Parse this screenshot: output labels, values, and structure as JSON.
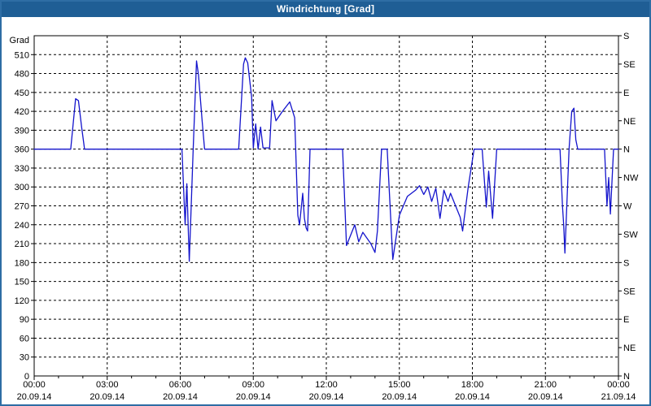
{
  "window": {
    "title": "Windrichtung [Grad]"
  },
  "colors": {
    "title_bar": "#1f5e95",
    "window_border": "#2e6da4",
    "line": "#1414cc",
    "grid": "#000000",
    "background": "#ffffff",
    "text": "#000000"
  },
  "chart_data": {
    "type": "line",
    "title": "Windrichtung [Grad]",
    "ylabel_left": "Grad",
    "xlabel": "",
    "y_range": [
      0,
      540
    ],
    "x_range_hours": [
      0,
      24
    ],
    "grid": "dashed, horizontal every 30 deg, vertical every 3 h",
    "legend_position": "none",
    "y_left_ticks": [
      0,
      30,
      60,
      90,
      120,
      150,
      180,
      210,
      240,
      270,
      300,
      330,
      360,
      390,
      420,
      450,
      480,
      510
    ],
    "y_right_step": 45,
    "y_right_labels_bottom_to_top": [
      "N",
      "NE",
      "E",
      "SE",
      "S",
      "SW",
      "W",
      "NW",
      "N",
      "NE",
      "E",
      "SE",
      "S"
    ],
    "x_tick_step_hours": 3,
    "x_minor_tick_step_hours": 1,
    "x_tick_labels": [
      {
        "time": "00:00",
        "date": "20.09.14"
      },
      {
        "time": "03:00",
        "date": "20.09.14"
      },
      {
        "time": "06:00",
        "date": "20.09.14"
      },
      {
        "time": "09:00",
        "date": "20.09.14"
      },
      {
        "time": "12:00",
        "date": "20.09.14"
      },
      {
        "time": "15:00",
        "date": "20.09.14"
      },
      {
        "time": "18:00",
        "date": "20.09.14"
      },
      {
        "time": "21:00",
        "date": "20.09.14"
      },
      {
        "time": "00:00",
        "date": "21.09.14"
      }
    ],
    "series": [
      {
        "name": "Windrichtung",
        "units": "Grad",
        "points_hours_degrees": [
          [
            0.0,
            360
          ],
          [
            1.5,
            360
          ],
          [
            1.6,
            400
          ],
          [
            1.7,
            440
          ],
          [
            1.82,
            437
          ],
          [
            1.95,
            395
          ],
          [
            2.07,
            360
          ],
          [
            6.07,
            360
          ],
          [
            6.2,
            240
          ],
          [
            6.27,
            305
          ],
          [
            6.37,
            182
          ],
          [
            6.53,
            360
          ],
          [
            6.67,
            500
          ],
          [
            6.75,
            478
          ],
          [
            6.9,
            405
          ],
          [
            7.0,
            360
          ],
          [
            8.4,
            360
          ],
          [
            8.6,
            495
          ],
          [
            8.67,
            505
          ],
          [
            8.77,
            497
          ],
          [
            8.93,
            443
          ],
          [
            9.0,
            362
          ],
          [
            9.1,
            400
          ],
          [
            9.2,
            360
          ],
          [
            9.3,
            395
          ],
          [
            9.4,
            362
          ],
          [
            9.67,
            362
          ],
          [
            9.77,
            437
          ],
          [
            9.93,
            405
          ],
          [
            10.2,
            420
          ],
          [
            10.5,
            435
          ],
          [
            10.7,
            410
          ],
          [
            10.83,
            255
          ],
          [
            10.9,
            240
          ],
          [
            11.03,
            290
          ],
          [
            11.1,
            250
          ],
          [
            11.17,
            235
          ],
          [
            11.23,
            230
          ],
          [
            11.33,
            360
          ],
          [
            12.67,
            360
          ],
          [
            12.83,
            207
          ],
          [
            13.17,
            240
          ],
          [
            13.33,
            213
          ],
          [
            13.5,
            228
          ],
          [
            13.83,
            210
          ],
          [
            14.0,
            196
          ],
          [
            14.1,
            230
          ],
          [
            14.27,
            360
          ],
          [
            14.5,
            360
          ],
          [
            14.73,
            185
          ],
          [
            15.0,
            255
          ],
          [
            15.33,
            285
          ],
          [
            15.67,
            295
          ],
          [
            15.83,
            302
          ],
          [
            16.0,
            288
          ],
          [
            16.17,
            300
          ],
          [
            16.33,
            277
          ],
          [
            16.5,
            298
          ],
          [
            16.67,
            250
          ],
          [
            16.83,
            295
          ],
          [
            17.0,
            277
          ],
          [
            17.1,
            290
          ],
          [
            17.5,
            252
          ],
          [
            17.6,
            230
          ],
          [
            17.83,
            300
          ],
          [
            18.07,
            360
          ],
          [
            18.4,
            360
          ],
          [
            18.57,
            268
          ],
          [
            18.67,
            325
          ],
          [
            18.83,
            250
          ],
          [
            19.0,
            360
          ],
          [
            21.6,
            360
          ],
          [
            21.7,
            270
          ],
          [
            21.75,
            240
          ],
          [
            21.8,
            195
          ],
          [
            21.97,
            360
          ],
          [
            22.08,
            420
          ],
          [
            22.17,
            425
          ],
          [
            22.25,
            375
          ],
          [
            22.33,
            360
          ],
          [
            23.43,
            360
          ],
          [
            23.53,
            270
          ],
          [
            23.6,
            315
          ],
          [
            23.67,
            257
          ],
          [
            23.8,
            360
          ],
          [
            24.0,
            360
          ]
        ]
      }
    ]
  }
}
